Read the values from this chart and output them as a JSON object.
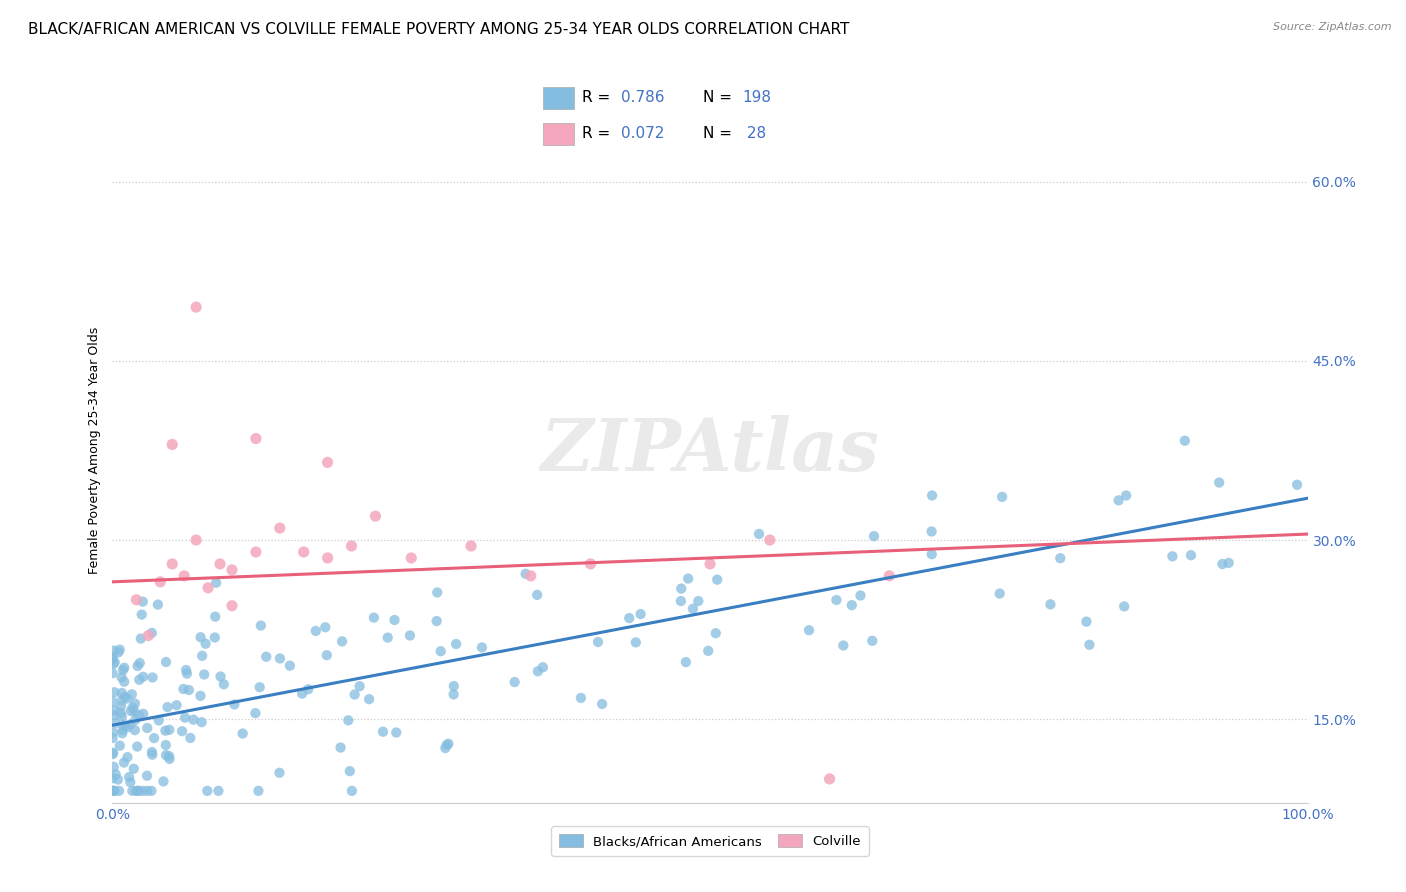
{
  "title": "BLACK/AFRICAN AMERICAN VS COLVILLE FEMALE POVERTY AMONG 25-34 YEAR OLDS CORRELATION CHART",
  "source": "Source: ZipAtlas.com",
  "ylabel": "Female Poverty Among 25-34 Year Olds",
  "xlim": [
    0,
    1.0
  ],
  "ylim": [
    0.08,
    0.67
  ],
  "yticks": [
    0.15,
    0.3,
    0.45,
    0.6
  ],
  "ytick_labels": [
    "15.0%",
    "30.0%",
    "45.0%",
    "60.0%"
  ],
  "xtick_labels": [
    "0.0%",
    "100.0%"
  ],
  "blue_R": 0.786,
  "blue_N": 198,
  "pink_R": 0.072,
  "pink_N": 28,
  "blue_color": "#85bde0",
  "pink_color": "#f4a7bc",
  "blue_line_color": "#3a7fc1",
  "pink_line_color": "#e8607a",
  "legend_label_blue": "Blacks/African Americans",
  "legend_label_pink": "Colville",
  "watermark": "ZIPAtlas",
  "title_fontsize": 11,
  "axis_fontsize": 10,
  "label_fontsize": 9,
  "tick_color": "#4472c4",
  "blue_line_start_y": 0.145,
  "blue_line_end_y": 0.335,
  "pink_line_start_y": 0.265,
  "pink_line_end_y": 0.305
}
